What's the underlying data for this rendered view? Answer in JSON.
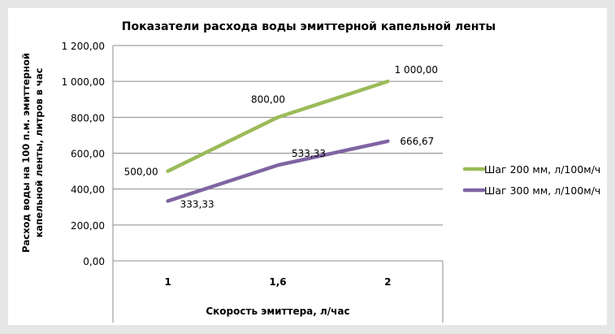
{
  "chart_data": {
    "type": "line",
    "title": "Показатели расхода воды эмиттерной капельной ленты",
    "xlabel": "Скорость эмиттера, л/час",
    "ylabel": "Расход воды на 100 п.м. эмиттерной капельной ленты, литров в час",
    "categories": [
      "1",
      "1,6",
      "2"
    ],
    "ylim": [
      0,
      1200
    ],
    "yticks": [
      0,
      200,
      400,
      600,
      800,
      1000,
      1200
    ],
    "ytick_labels": [
      "0,00",
      "200,00",
      "400,00",
      "600,00",
      "800,00",
      "1 000,00",
      "1 200,00"
    ],
    "grid": true,
    "legend_position": "right",
    "series": [
      {
        "name": "Шаг 200 мм, л/100м/ч",
        "values": [
          500,
          800,
          1000
        ],
        "labels": [
          "500,00",
          "800,00",
          "1 000,00"
        ],
        "color": "#9bbb59"
      },
      {
        "name": "Шаг 300 мм, л/100м/ч",
        "values": [
          333.33,
          533.33,
          666.67
        ],
        "labels": [
          "333,33",
          "533,33",
          "666,67"
        ],
        "color": "#8064a2"
      }
    ]
  }
}
